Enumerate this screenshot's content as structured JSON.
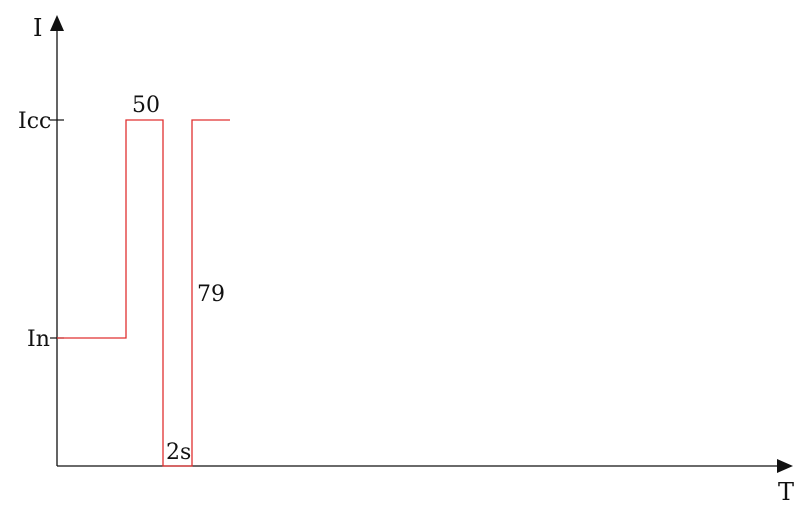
{
  "diagram": {
    "y_axis_label": "I",
    "x_axis_label": "T",
    "y_ticks": {
      "icc": "Icc",
      "in": "In"
    },
    "annotations": {
      "peak_duration": "50",
      "recovery_duration": "79",
      "gap_duration": "2s"
    },
    "colors": {
      "axis": "#111111",
      "signal": "#e03030"
    }
  }
}
